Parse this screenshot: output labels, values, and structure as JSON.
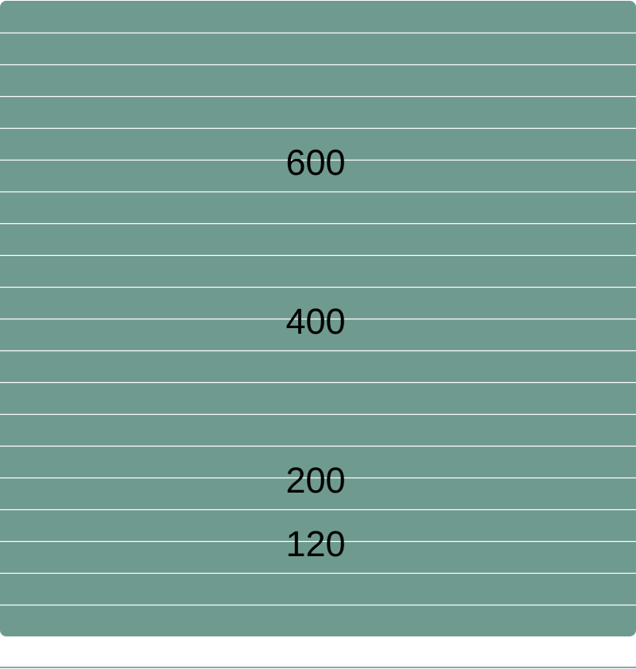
{
  "panel": {
    "background_color": "#6f9a8f",
    "line_color": "#ffffff",
    "line_count": 19
  },
  "labels": [
    {
      "text": "600",
      "value": 600
    },
    {
      "text": "400",
      "value": 400
    },
    {
      "text": "200",
      "value": 200
    },
    {
      "text": "120",
      "value": 120
    }
  ]
}
